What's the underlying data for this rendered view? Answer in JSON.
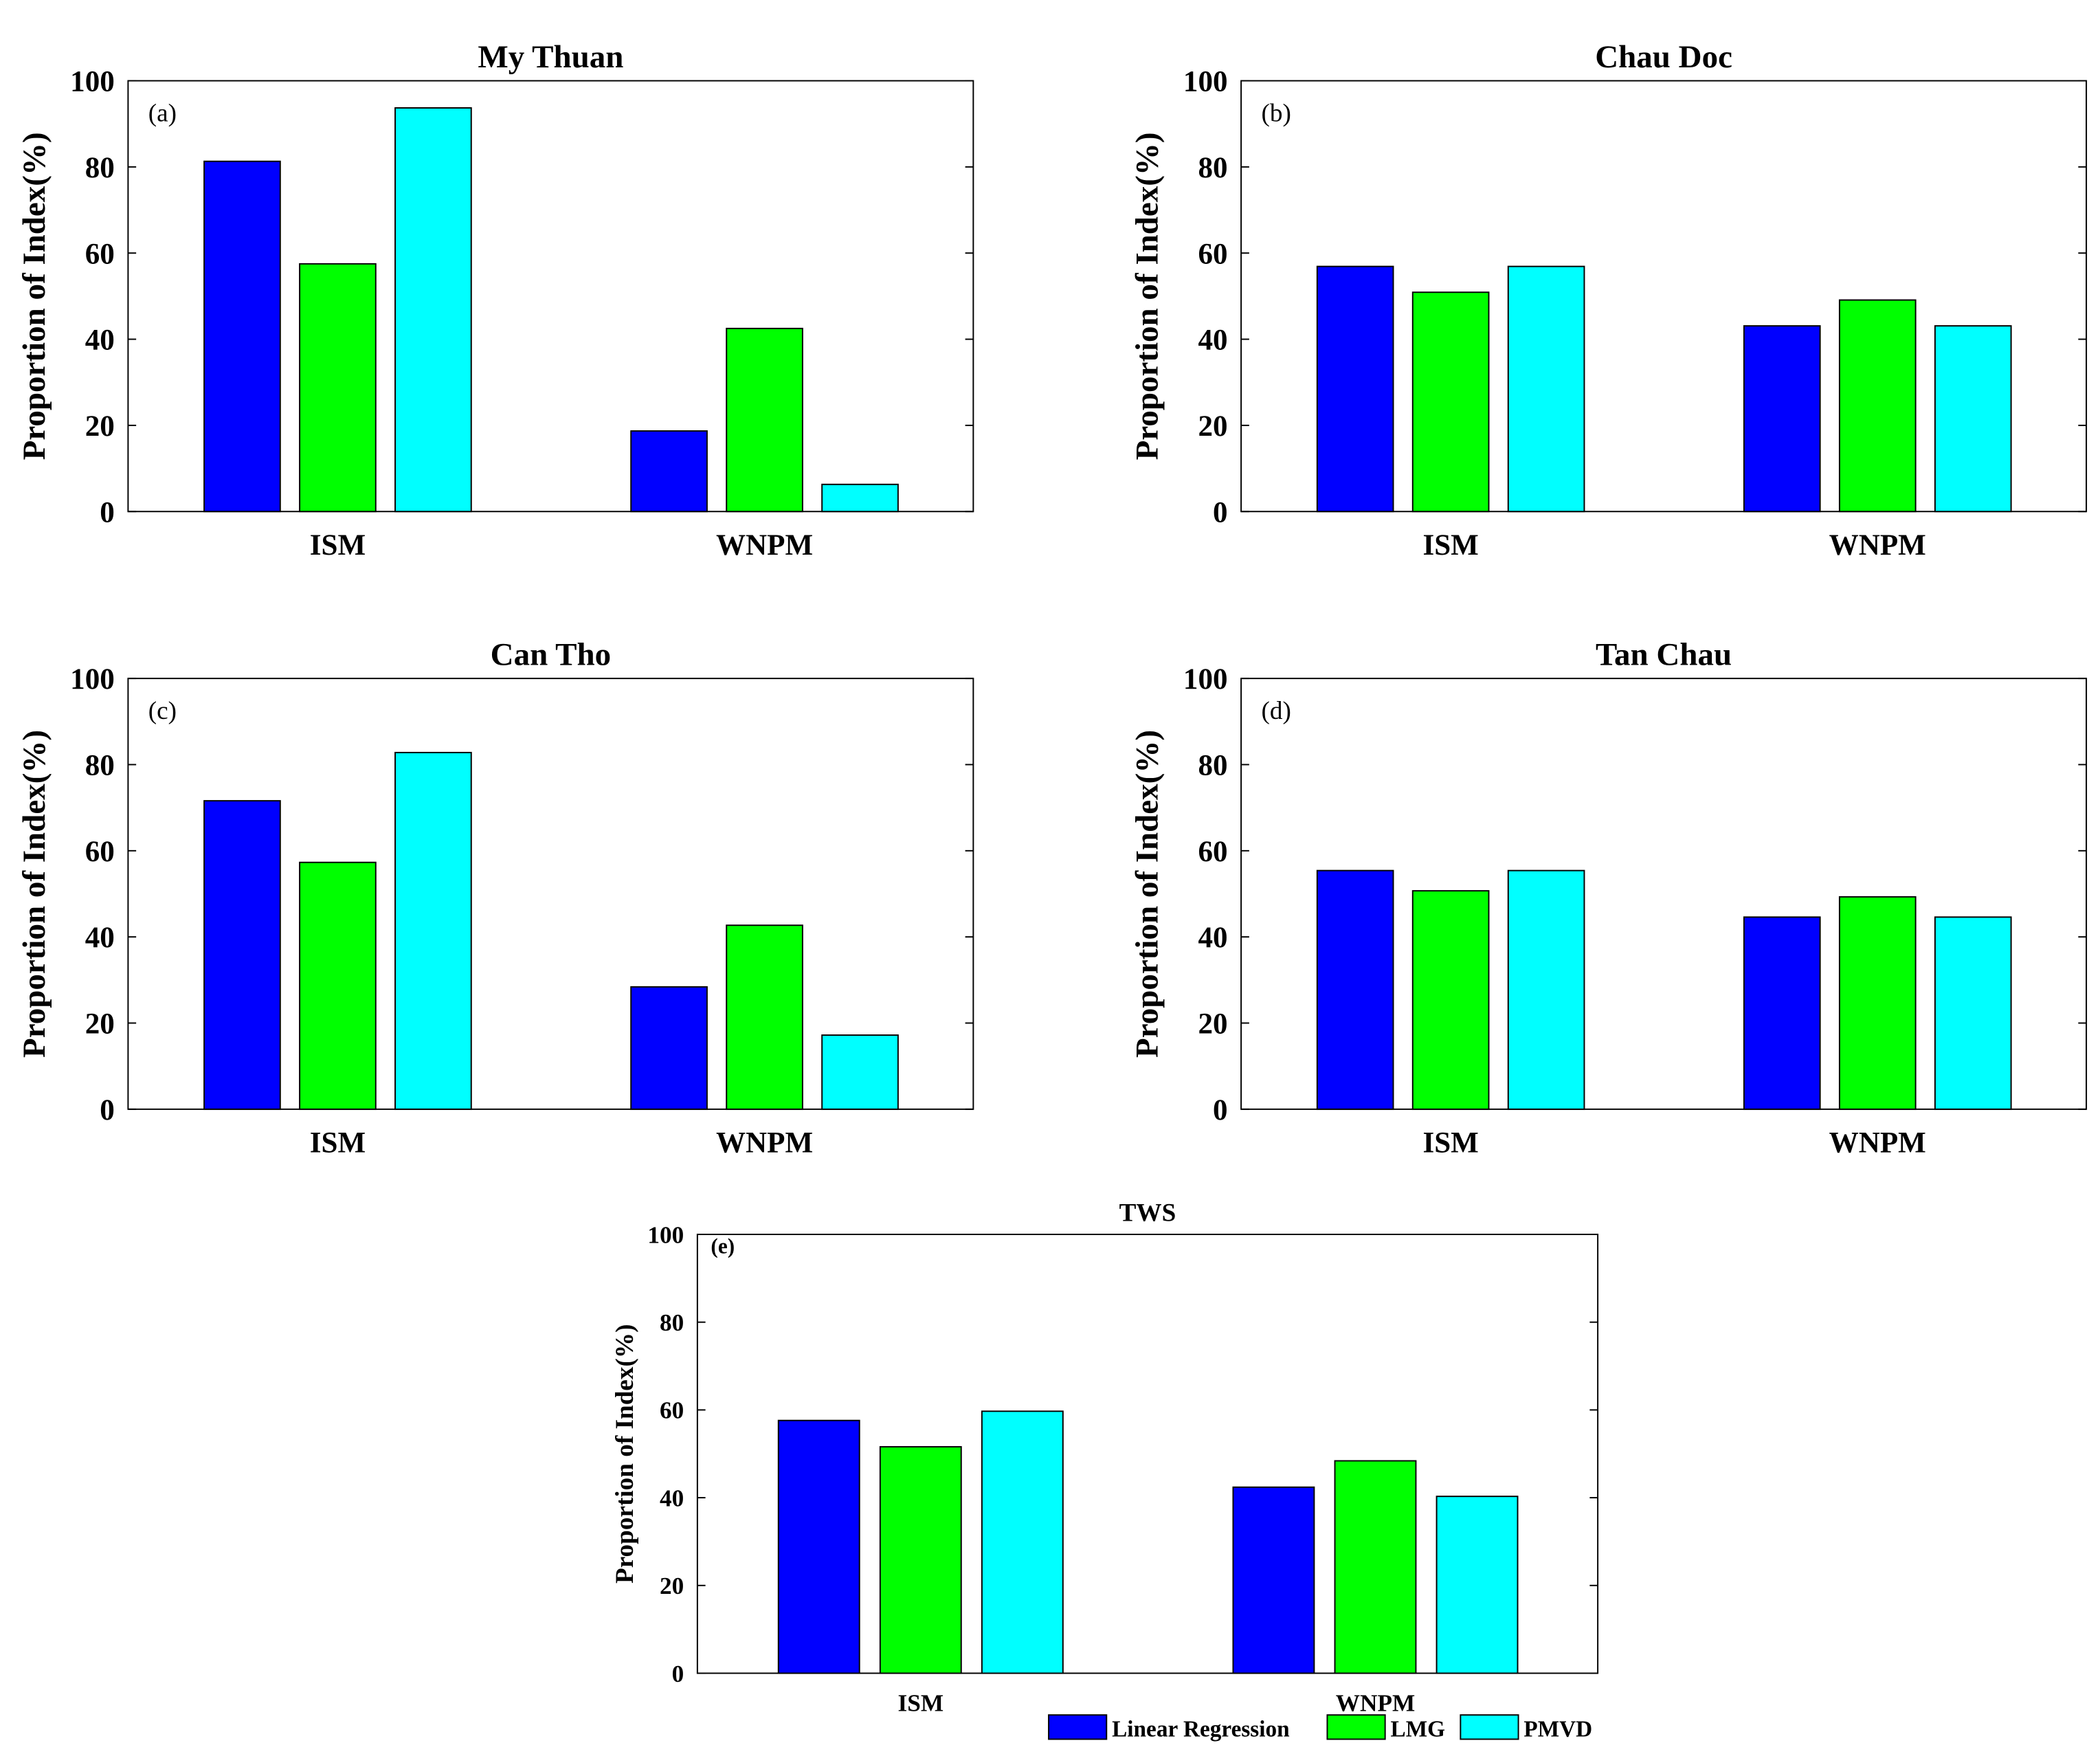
{
  "legend": {
    "entries": [
      "Linear Regression",
      "LMG",
      "PMVD"
    ],
    "colors": [
      "#0000ff",
      "#00ff00",
      "#00ffff"
    ],
    "placement": "bottom-right"
  },
  "chart_data": [
    {
      "type": "bar",
      "panel": "(a)",
      "title": "My Thuan",
      "ylabel": "Proportion of Index(%)",
      "xlabel": "",
      "ylim": [
        0,
        100
      ],
      "yticks": [
        "0",
        "20",
        "40",
        "60",
        "80",
        "100"
      ],
      "categories": [
        "ISM",
        "WNPM"
      ],
      "series": [
        {
          "name": "Linear Regression",
          "values": [
            81.3,
            18.7
          ]
        },
        {
          "name": "LMG",
          "values": [
            57.5,
            42.5
          ]
        },
        {
          "name": "PMVD",
          "values": [
            93.7,
            6.3
          ]
        }
      ]
    },
    {
      "type": "bar",
      "panel": "(b)",
      "title": "Chau Doc",
      "ylabel": "Proportion of Index(%)",
      "xlabel": "",
      "ylim": [
        0,
        100
      ],
      "yticks": [
        "0",
        "20",
        "40",
        "60",
        "80",
        "100"
      ],
      "categories": [
        "ISM",
        "WNPM"
      ],
      "series": [
        {
          "name": "Linear Regression",
          "values": [
            56.9,
            43.1
          ]
        },
        {
          "name": "LMG",
          "values": [
            50.9,
            49.1
          ]
        },
        {
          "name": "PMVD",
          "values": [
            56.9,
            43.1
          ]
        }
      ]
    },
    {
      "type": "bar",
      "panel": "(c)",
      "title": "Can Tho",
      "ylabel": "Proportion of Index(%)",
      "xlabel": "",
      "ylim": [
        0,
        100
      ],
      "yticks": [
        "0",
        "20",
        "40",
        "60",
        "80",
        "100"
      ],
      "categories": [
        "ISM",
        "WNPM"
      ],
      "series": [
        {
          "name": "Linear Regression",
          "values": [
            71.6,
            28.4
          ]
        },
        {
          "name": "LMG",
          "values": [
            57.3,
            42.7
          ]
        },
        {
          "name": "PMVD",
          "values": [
            82.8,
            17.2
          ]
        }
      ]
    },
    {
      "type": "bar",
      "panel": "(d)",
      "title": "Tan Chau",
      "ylabel": "Proportion of Index(%)",
      "xlabel": "",
      "ylim": [
        0,
        100
      ],
      "yticks": [
        "0",
        "20",
        "40",
        "60",
        "80",
        "100"
      ],
      "categories": [
        "ISM",
        "WNPM"
      ],
      "series": [
        {
          "name": "Linear Regression",
          "values": [
            55.4,
            44.6
          ]
        },
        {
          "name": "LMG",
          "values": [
            50.7,
            49.3
          ]
        },
        {
          "name": "PMVD",
          "values": [
            55.4,
            44.6
          ]
        }
      ]
    },
    {
      "type": "bar",
      "panel": "(e)",
      "title": "TWS",
      "ylabel": "Proportion of Index(%)",
      "xlabel": "",
      "ylim": [
        0,
        100
      ],
      "yticks": [
        "0",
        "20",
        "40",
        "60",
        "80",
        "100"
      ],
      "categories": [
        "ISM",
        "WNPM"
      ],
      "series": [
        {
          "name": "Linear Regression",
          "values": [
            57.6,
            42.4
          ]
        },
        {
          "name": "LMG",
          "values": [
            51.6,
            48.4
          ]
        },
        {
          "name": "PMVD",
          "values": [
            59.7,
            40.3
          ]
        }
      ]
    }
  ]
}
